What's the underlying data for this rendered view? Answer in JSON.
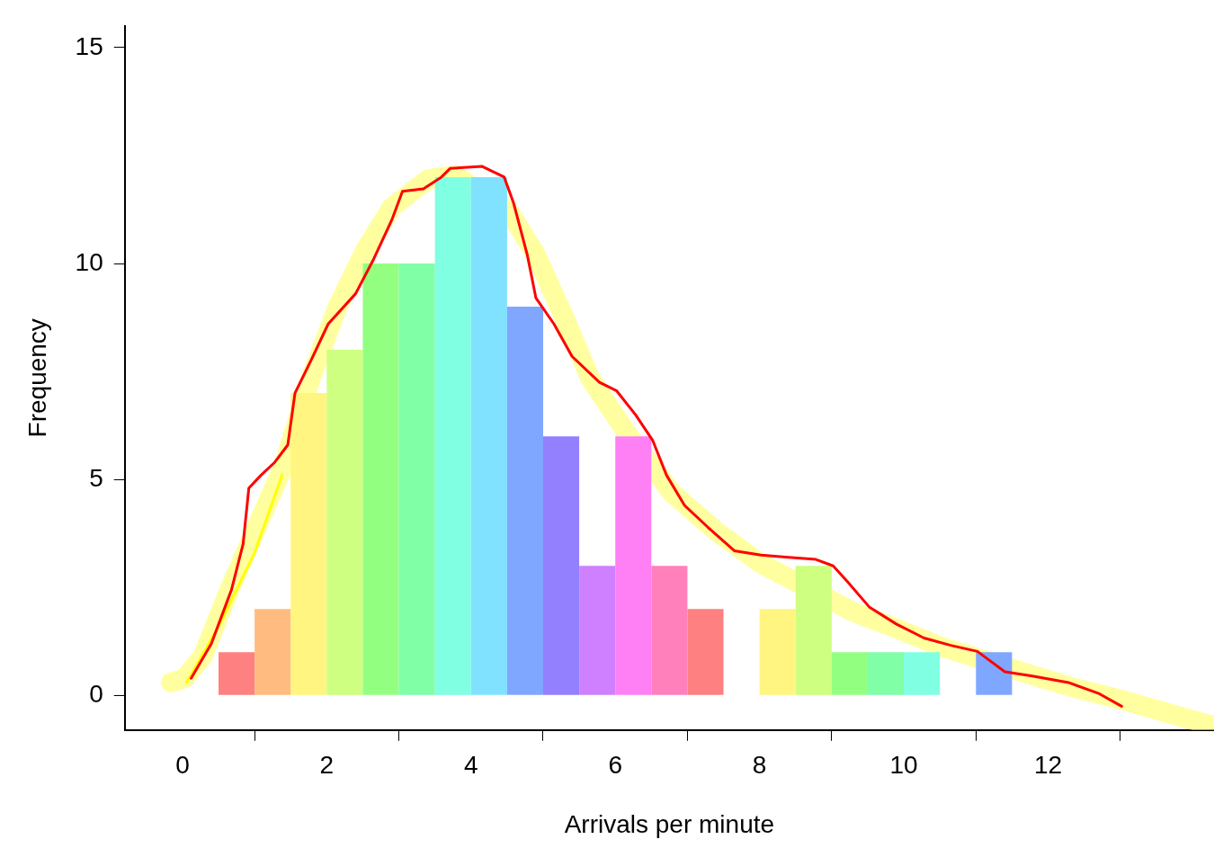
{
  "chart_data": {
    "type": "histogram",
    "xlabel": "Arrivals per minute",
    "ylabel": "Frequency",
    "bins": [
      0.5,
      1,
      1.5,
      2,
      2.5,
      3,
      3.5,
      4,
      4.5,
      5,
      5.5,
      6,
      6.5,
      7,
      7.5,
      8,
      8.5,
      9,
      9.5,
      10,
      10.5,
      11,
      11.5
    ],
    "values": [
      1,
      2,
      7,
      8,
      10,
      10,
      12,
      12,
      9,
      6,
      3,
      6,
      3,
      2,
      0,
      2,
      3,
      1,
      1,
      1,
      0,
      1
    ],
    "colors": [
      "#ff8080",
      "#ffbb80",
      "#fff580",
      "#ceff80",
      "#93ff80",
      "#80ffa7",
      "#80ffe2",
      "#80e2ff",
      "#80a7ff",
      "#9380ff",
      "#ce80ff",
      "#ff80f5",
      "#ff80bb",
      "#ff8080",
      "#ffbb80",
      "#fff580",
      "#ceff80",
      "#93ff80",
      "#80ffa7",
      "#80ffe2",
      "#80e2ff",
      "#80a7ff"
    ],
    "series": [
      {
        "type": "line",
        "color": "#ffff80",
        "x": [
          -0.16,
          0.03,
          0.28,
          0.65,
          1.03,
          1.4,
          1.78,
          2.15,
          2.53,
          2.9,
          3.4,
          3.78,
          4.53,
          4.9,
          5.28,
          5.65,
          6.15,
          6.78,
          7.4,
          8.02,
          9.28,
          9.9,
          10.53,
          11.78,
          12.4,
          13.02,
          13.65,
          14.28
        ],
        "values": [
          0.3,
          0.4,
          0.9,
          2.45,
          3.9,
          5.3,
          7.35,
          9.0,
          10.3,
          11.3,
          11.95,
          12.05,
          11.2,
          10.2,
          8.8,
          7.35,
          6.1,
          4.7,
          3.8,
          3.05,
          1.95,
          1.55,
          1.12,
          0.47,
          0.16,
          -0.1,
          -0.4,
          -0.7
        ]
      },
      {
        "type": "line",
        "color": "#ffff00",
        "x": [
          0.06,
          0.5,
          1.0,
          1.38
        ],
        "values": [
          0.3,
          1.6,
          3.3,
          5.1
        ]
      },
      {
        "type": "line",
        "color": "#ff0000",
        "x": [
          0.12,
          0.4,
          0.68,
          0.84,
          0.92,
          1.09,
          1.28,
          1.46,
          1.56,
          1.78,
          2.02,
          2.4,
          2.65,
          2.9,
          3.05,
          3.34,
          3.59,
          3.71,
          4.15,
          4.46,
          4.59,
          4.78,
          4.9,
          5.15,
          5.4,
          5.78,
          6.02,
          6.28,
          6.52,
          6.71,
          6.96,
          7.28,
          7.65,
          8.02,
          8.4,
          8.78,
          9.02,
          9.21,
          9.52,
          9.9,
          10.28,
          10.65,
          11.02,
          11.4,
          11.78,
          12.28,
          12.71,
          13.02
        ],
        "values": [
          0.4,
          1.2,
          2.45,
          3.5,
          4.8,
          5.1,
          5.4,
          5.8,
          7.0,
          7.75,
          8.6,
          9.3,
          10.1,
          11.0,
          11.67,
          11.73,
          12.0,
          12.2,
          12.25,
          12.0,
          11.4,
          10.2,
          9.2,
          8.6,
          7.85,
          7.25,
          7.05,
          6.5,
          5.9,
          5.1,
          4.4,
          3.9,
          3.35,
          3.25,
          3.2,
          3.15,
          3.0,
          2.65,
          2.05,
          1.65,
          1.33,
          1.16,
          1.02,
          0.55,
          0.45,
          0.3,
          0.04,
          -0.25
        ]
      }
    ],
    "xlim": [
      -0.8,
      14.3
    ],
    "xticks": [
      0,
      2,
      4,
      6,
      8,
      10,
      12
    ],
    "ylim": [
      -0.8,
      15.5
    ],
    "yticks": [
      0,
      5,
      10,
      15
    ],
    "grid": false,
    "legend": false
  }
}
